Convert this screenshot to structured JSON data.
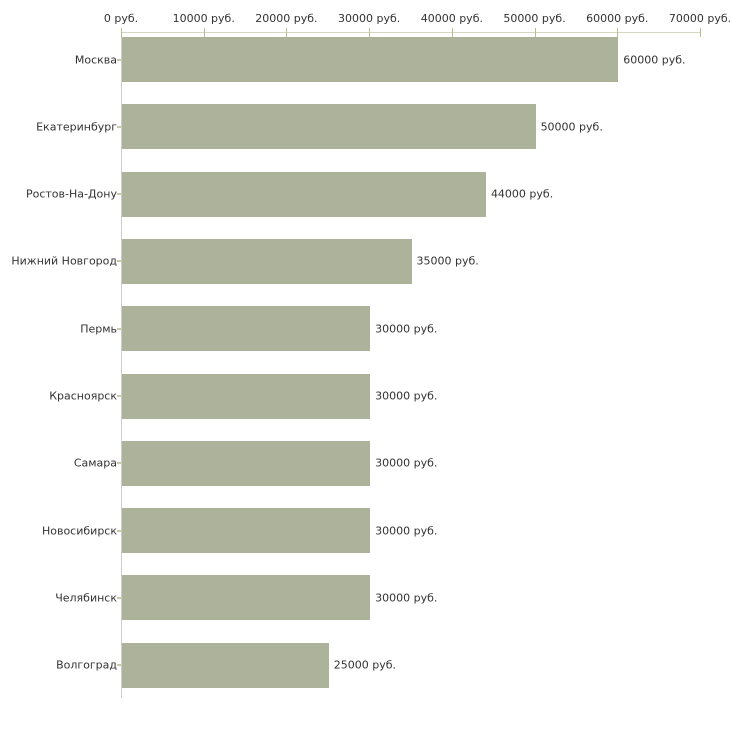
{
  "chart_data": {
    "type": "bar",
    "orientation": "horizontal",
    "title": "",
    "xlabel": "",
    "ylabel": "",
    "categories": [
      "Москва",
      "Екатеринбург",
      "Ростов-На-Дону",
      "Нижний Новгород",
      "Пермь",
      "Красноярск",
      "Самара",
      "Новосибирск",
      "Челябинск",
      "Волгоград"
    ],
    "values": [
      60000,
      50000,
      44000,
      35000,
      30000,
      30000,
      30000,
      30000,
      30000,
      25000
    ],
    "value_labels": [
      "60000 руб.",
      "50000 руб.",
      "44000 руб.",
      "35000 руб.",
      "30000 руб.",
      "30000 руб.",
      "30000 руб.",
      "30000 руб.",
      "30000 руб.",
      "25000 руб."
    ],
    "unit": "руб.",
    "x_axis": {
      "position": "top",
      "min": 0,
      "max": 70000,
      "ticks": [
        0,
        10000,
        20000,
        30000,
        40000,
        50000,
        60000,
        70000
      ],
      "tick_labels": [
        "0 руб.",
        "10000 руб.",
        "20000 руб.",
        "30000 руб.",
        "40000 руб.",
        "50000 руб.",
        "60000 руб.",
        "70000 руб."
      ]
    },
    "grid": false,
    "legend": false,
    "colors": {
      "bar": "#adb29a",
      "h_axis_line": "#d6d7c0",
      "v_axis_line": "#cccccc",
      "tick": "#b9bc8e",
      "cat_tick": "#c9cba6",
      "text": "#333333",
      "background": "#ffffff"
    }
  }
}
